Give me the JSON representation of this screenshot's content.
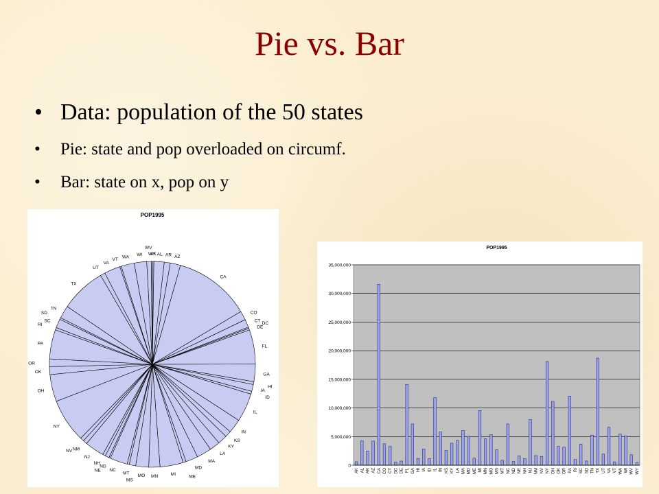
{
  "slide": {
    "title": "Pie vs. Bar",
    "bullets": [
      "Data:  population of the 50 states",
      "Pie:  state and pop overloaded on circumf.",
      "Bar:  state on x, pop on y"
    ],
    "bullet_glyph": "•"
  },
  "colors": {
    "title": "#8b0000",
    "pie_fill": "#c8ccf2",
    "bar_fill": "#9aa2e8",
    "bar_stroke": "#2a2a80",
    "plot_area": "#c0c0c0",
    "background": "#fbeed0"
  },
  "chart_data": [
    {
      "type": "pie",
      "title": "POP1995",
      "labels": [
        "AK",
        "AL",
        "AR",
        "AZ",
        "CA",
        "CO",
        "CT",
        "DC",
        "DE",
        "FL",
        "GA",
        "HI",
        "IA",
        "ID",
        "IL",
        "IN",
        "KS",
        "KY",
        "LA",
        "MA",
        "MD",
        "ME",
        "MI",
        "MN",
        "MO",
        "MS",
        "MT",
        "NC",
        "ND",
        "NE",
        "NH",
        "NJ",
        "NM",
        "NV",
        "NY",
        "OH",
        "OK",
        "OR",
        "PA",
        "RI",
        "SC",
        "SD",
        "TN",
        "TX",
        "UT",
        "VA",
        "VT",
        "WA",
        "WI",
        "WV",
        "WY"
      ],
      "values": [
        600000,
        4250000,
        2480000,
        4220000,
        31600000,
        3750000,
        3270000,
        550000,
        720000,
        14100000,
        7200000,
        1180000,
        2840000,
        1160000,
        11800000,
        5800000,
        2560000,
        3850000,
        4340000,
        6080000,
        5040000,
        1240000,
        9550000,
        4610000,
        5320000,
        2700000,
        870000,
        7200000,
        640000,
        1640000,
        1150000,
        7950000,
        1680000,
        1530000,
        18100000,
        11150000,
        3280000,
        3140000,
        12070000,
        990000,
        3670000,
        730000,
        5260000,
        18700000,
        1950000,
        6620000,
        590000,
        5430000,
        5120000,
        1830000,
        480000
      ],
      "legend": "none"
    },
    {
      "type": "bar",
      "title": "POP1995",
      "categories": [
        "AK",
        "AL",
        "AR",
        "AZ",
        "CA",
        "CO",
        "CT",
        "DC",
        "DE",
        "FL",
        "GA",
        "HI",
        "IA",
        "ID",
        "IL",
        "IN",
        "KS",
        "KY",
        "LA",
        "MA",
        "MD",
        "ME",
        "MI",
        "MN",
        "MO",
        "MS",
        "MT",
        "NC",
        "ND",
        "NE",
        "NH",
        "NJ",
        "NM",
        "NV",
        "NY",
        "OH",
        "OK",
        "OR",
        "PA",
        "RI",
        "SC",
        "SD",
        "TN",
        "TX",
        "UT",
        "VA",
        "VT",
        "WA",
        "WI",
        "WV",
        "WY"
      ],
      "values": [
        600000,
        4250000,
        2480000,
        4220000,
        31600000,
        3750000,
        3270000,
        550000,
        720000,
        14100000,
        7200000,
        1180000,
        2840000,
        1160000,
        11800000,
        5800000,
        2560000,
        3850000,
        4340000,
        6080000,
        5040000,
        1240000,
        9550000,
        4610000,
        5320000,
        2700000,
        870000,
        7200000,
        640000,
        1640000,
        1150000,
        7950000,
        1680000,
        1530000,
        18100000,
        11150000,
        3280000,
        3140000,
        12070000,
        990000,
        3670000,
        730000,
        5260000,
        18700000,
        1950000,
        6620000,
        590000,
        5430000,
        5120000,
        1830000,
        480000
      ],
      "ylim": [
        0,
        35000000
      ],
      "yticks": [
        0,
        5000000,
        10000000,
        15000000,
        20000000,
        25000000,
        30000000,
        35000000
      ],
      "ytick_labels": [
        "0",
        "5,000,000",
        "10,000,000",
        "15,000,000",
        "20,000,000",
        "25,000,000",
        "30,000,000",
        "35,000,000"
      ],
      "grid": true,
      "xlabel": "",
      "ylabel": ""
    }
  ]
}
